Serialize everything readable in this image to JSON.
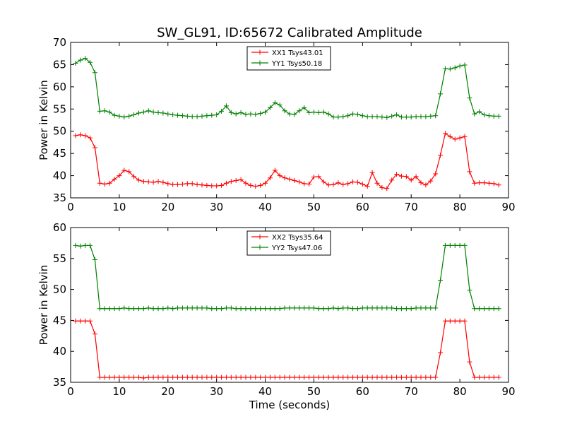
{
  "chart_data": [
    {
      "type": "line",
      "title": "SW_GL91, ID:65672 Calibrated Amplitude",
      "xlabel": "",
      "ylabel": "Power in Kelvin",
      "xlim": [
        0,
        90
      ],
      "ylim": [
        35,
        70
      ],
      "xticks": [
        0,
        10,
        20,
        30,
        40,
        50,
        60,
        70,
        80,
        90
      ],
      "yticks": [
        35,
        40,
        45,
        50,
        55,
        60,
        65,
        70
      ],
      "grid": false,
      "legend_position": "top-center",
      "x": [
        1,
        2,
        3,
        4,
        5,
        6,
        7,
        8,
        9,
        10,
        11,
        12,
        13,
        14,
        15,
        16,
        17,
        18,
        19,
        20,
        21,
        22,
        23,
        24,
        25,
        26,
        27,
        28,
        29,
        30,
        31,
        32,
        33,
        34,
        35,
        36,
        37,
        38,
        39,
        40,
        41,
        42,
        43,
        44,
        45,
        46,
        47,
        48,
        49,
        50,
        51,
        52,
        53,
        54,
        55,
        56,
        57,
        58,
        59,
        60,
        61,
        62,
        63,
        64,
        65,
        66,
        67,
        68,
        69,
        70,
        71,
        72,
        73,
        74,
        75,
        76,
        77,
        78,
        79,
        80,
        81,
        82,
        83,
        84,
        85,
        86,
        87,
        88
      ],
      "series": [
        {
          "name": "XX1 Tsys43.01",
          "color": "#ff0000",
          "values": [
            49.0,
            49.2,
            49.0,
            48.5,
            46.3,
            38.3,
            38.1,
            38.3,
            39.2,
            40.0,
            41.2,
            40.9,
            39.8,
            39.0,
            38.7,
            38.6,
            38.5,
            38.7,
            38.5,
            38.2,
            38.0,
            38.0,
            38.1,
            38.2,
            38.2,
            38.0,
            37.9,
            37.8,
            37.7,
            37.7,
            37.8,
            38.3,
            38.7,
            38.9,
            39.1,
            38.3,
            37.8,
            37.6,
            37.8,
            38.3,
            39.5,
            41.2,
            40.0,
            39.5,
            39.2,
            38.9,
            38.6,
            38.2,
            38.1,
            39.7,
            39.8,
            38.6,
            37.9,
            38.0,
            38.4,
            38.0,
            38.2,
            38.6,
            38.5,
            38.1,
            37.6,
            40.7,
            38.3,
            37.3,
            37.1,
            39.0,
            40.3,
            39.9,
            39.8,
            39.0,
            39.8,
            38.4,
            37.9,
            38.8,
            40.4,
            44.6,
            49.5,
            48.8,
            48.2,
            48.5,
            48.8,
            40.9,
            38.3,
            38.4,
            38.4,
            38.3,
            38.2,
            37.9
          ]
        },
        {
          "name": "YY1 Tsys50.18",
          "color": "#008000",
          "values": [
            65.3,
            66.0,
            66.4,
            65.5,
            63.2,
            54.5,
            54.6,
            54.3,
            53.6,
            53.4,
            53.2,
            53.4,
            53.7,
            54.1,
            54.3,
            54.6,
            54.3,
            54.2,
            54.1,
            53.9,
            53.7,
            53.6,
            53.5,
            53.4,
            53.3,
            53.3,
            53.4,
            53.5,
            53.6,
            53.7,
            54.5,
            55.7,
            54.2,
            53.9,
            54.2,
            53.8,
            53.9,
            53.8,
            54.0,
            54.3,
            55.3,
            56.4,
            55.9,
            54.6,
            53.9,
            53.8,
            54.6,
            55.3,
            54.2,
            54.3,
            54.2,
            54.3,
            53.9,
            53.2,
            53.2,
            53.3,
            53.5,
            53.9,
            53.8,
            53.5,
            53.3,
            53.3,
            53.3,
            53.2,
            53.1,
            53.4,
            53.7,
            53.2,
            53.2,
            53.2,
            53.3,
            53.3,
            53.3,
            53.4,
            53.5,
            58.4,
            64.1,
            64.0,
            64.3,
            64.7,
            64.9,
            57.5,
            53.9,
            54.4,
            53.7,
            53.5,
            53.4,
            53.4
          ]
        }
      ]
    },
    {
      "type": "line",
      "title": "",
      "xlabel": "Time (seconds)",
      "ylabel": "Power in Kelvin",
      "xlim": [
        0,
        90
      ],
      "ylim": [
        35,
        60
      ],
      "xticks": [
        0,
        10,
        20,
        30,
        40,
        50,
        60,
        70,
        80,
        90
      ],
      "yticks": [
        35,
        40,
        45,
        50,
        55,
        60
      ],
      "grid": false,
      "legend_position": "top-center",
      "x": [
        1,
        2,
        3,
        4,
        5,
        6,
        7,
        8,
        9,
        10,
        11,
        12,
        13,
        14,
        15,
        16,
        17,
        18,
        19,
        20,
        21,
        22,
        23,
        24,
        25,
        26,
        27,
        28,
        29,
        30,
        31,
        32,
        33,
        34,
        35,
        36,
        37,
        38,
        39,
        40,
        41,
        42,
        43,
        44,
        45,
        46,
        47,
        48,
        49,
        50,
        51,
        52,
        53,
        54,
        55,
        56,
        57,
        58,
        59,
        60,
        61,
        62,
        63,
        64,
        65,
        66,
        67,
        68,
        69,
        70,
        71,
        72,
        73,
        74,
        75,
        76,
        77,
        78,
        79,
        80,
        81,
        82,
        83,
        84,
        85,
        86,
        87,
        88
      ],
      "series": [
        {
          "name": "XX2 Tsys35.64",
          "color": "#ff0000",
          "values": [
            44.9,
            44.9,
            44.9,
            44.9,
            42.8,
            35.8,
            35.8,
            35.8,
            35.8,
            35.8,
            35.8,
            35.8,
            35.8,
            35.8,
            35.7,
            35.8,
            35.8,
            35.8,
            35.8,
            35.8,
            35.8,
            35.8,
            35.8,
            35.8,
            35.8,
            35.8,
            35.8,
            35.8,
            35.8,
            35.8,
            35.8,
            35.8,
            35.8,
            35.8,
            35.8,
            35.8,
            35.8,
            35.8,
            35.8,
            35.8,
            35.8,
            35.8,
            35.8,
            35.8,
            35.8,
            35.8,
            35.8,
            35.8,
            35.8,
            35.8,
            35.8,
            35.8,
            35.8,
            35.8,
            35.8,
            35.8,
            35.8,
            35.8,
            35.8,
            35.8,
            35.8,
            35.8,
            35.8,
            35.8,
            35.8,
            35.8,
            35.8,
            35.8,
            35.8,
            35.8,
            35.8,
            35.8,
            35.8,
            35.8,
            35.8,
            39.8,
            44.9,
            44.9,
            44.9,
            44.9,
            44.9,
            38.3,
            35.8,
            35.8,
            35.8,
            35.8,
            35.8,
            35.8
          ]
        },
        {
          "name": "YY2 Tsys47.06",
          "color": "#008000",
          "values": [
            57.1,
            57.0,
            57.1,
            57.1,
            54.8,
            46.9,
            46.9,
            46.9,
            46.9,
            46.9,
            47.0,
            46.9,
            46.9,
            46.9,
            46.9,
            47.0,
            46.9,
            46.9,
            46.9,
            47.0,
            46.9,
            47.0,
            47.0,
            47.0,
            47.0,
            47.0,
            47.0,
            47.0,
            46.9,
            46.9,
            46.9,
            47.0,
            47.0,
            46.9,
            46.9,
            46.9,
            46.9,
            46.9,
            46.9,
            46.9,
            46.9,
            46.9,
            46.9,
            47.0,
            47.0,
            47.0,
            47.0,
            47.0,
            47.0,
            47.0,
            46.9,
            46.9,
            46.9,
            47.0,
            46.9,
            47.0,
            47.0,
            46.9,
            46.9,
            47.0,
            47.0,
            47.0,
            47.0,
            47.0,
            47.0,
            47.0,
            46.9,
            46.9,
            46.9,
            46.9,
            47.0,
            47.0,
            47.0,
            47.0,
            47.0,
            51.5,
            57.1,
            57.1,
            57.1,
            57.1,
            57.1,
            49.9,
            46.9,
            46.9,
            46.9,
            46.9,
            46.9,
            46.9
          ]
        }
      ]
    }
  ]
}
